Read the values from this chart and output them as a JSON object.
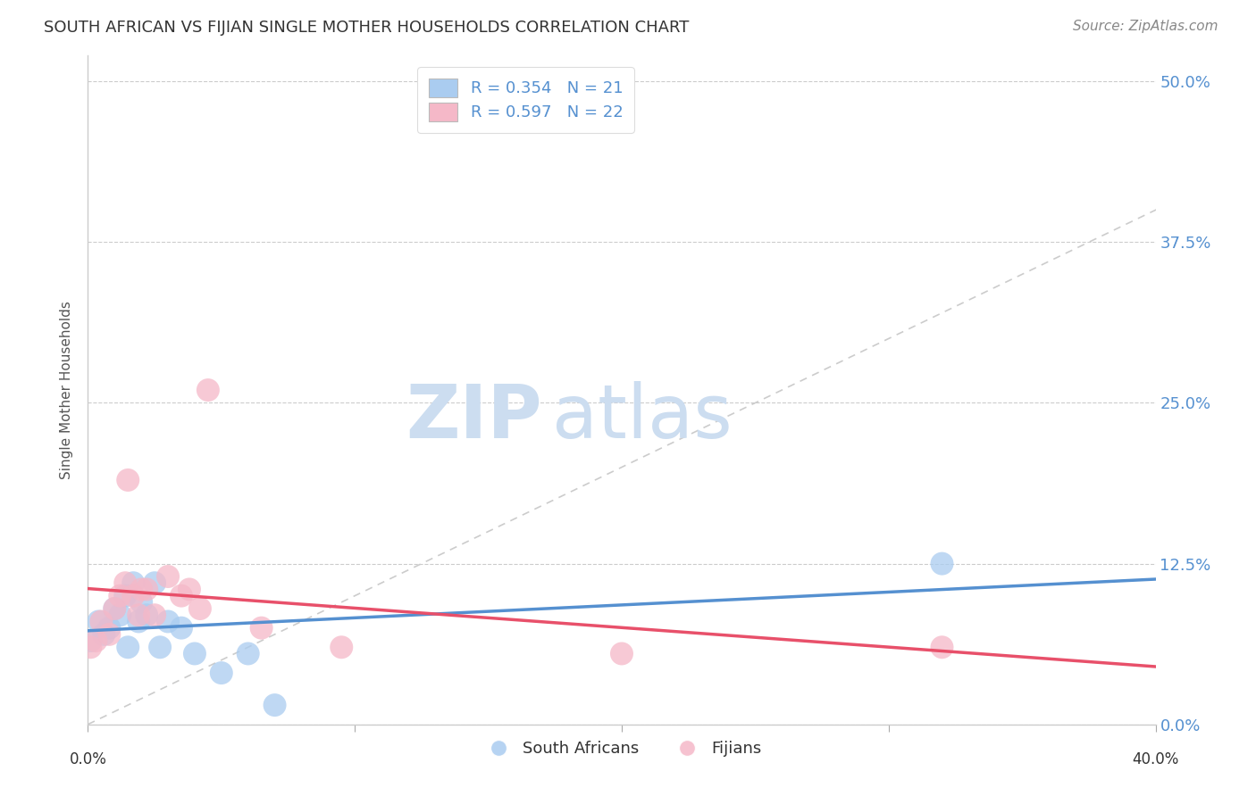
{
  "title": "SOUTH AFRICAN VS FIJIAN SINGLE MOTHER HOUSEHOLDS CORRELATION CHART",
  "source": "Source: ZipAtlas.com",
  "ylabel": "Single Mother Households",
  "ytick_labels": [
    "0.0%",
    "12.5%",
    "25.0%",
    "37.5%",
    "50.0%"
  ],
  "ytick_values": [
    0.0,
    0.125,
    0.25,
    0.375,
    0.5
  ],
  "xlim": [
    0.0,
    0.4
  ],
  "ylim": [
    0.0,
    0.52
  ],
  "south_african_color": "#aaccf0",
  "fijian_color": "#f5b8c8",
  "south_african_line_color": "#5590d0",
  "fijian_line_color": "#e8506a",
  "diagonal_color": "#cccccc",
  "sa_x": [
    0.001,
    0.004,
    0.006,
    0.008,
    0.01,
    0.012,
    0.014,
    0.015,
    0.017,
    0.019,
    0.02,
    0.022,
    0.025,
    0.027,
    0.03,
    0.035,
    0.04,
    0.05,
    0.06,
    0.07,
    0.32
  ],
  "sa_y": [
    0.065,
    0.08,
    0.07,
    0.075,
    0.09,
    0.085,
    0.1,
    0.06,
    0.11,
    0.08,
    0.095,
    0.085,
    0.11,
    0.06,
    0.08,
    0.075,
    0.055,
    0.04,
    0.055,
    0.015,
    0.125
  ],
  "fj_x": [
    0.001,
    0.003,
    0.005,
    0.008,
    0.01,
    0.012,
    0.014,
    0.015,
    0.017,
    0.019,
    0.02,
    0.022,
    0.025,
    0.03,
    0.035,
    0.038,
    0.042,
    0.045,
    0.065,
    0.095,
    0.2,
    0.32
  ],
  "fj_y": [
    0.06,
    0.065,
    0.08,
    0.07,
    0.09,
    0.1,
    0.11,
    0.19,
    0.1,
    0.085,
    0.105,
    0.105,
    0.085,
    0.115,
    0.1,
    0.105,
    0.09,
    0.26,
    0.075,
    0.06,
    0.055,
    0.06
  ],
  "legend_sa_label": "R = 0.354   N = 21",
  "legend_fj_label": "R = 0.597   N = 22",
  "bottom_legend_sa": "South Africans",
  "bottom_legend_fj": "Fijians"
}
